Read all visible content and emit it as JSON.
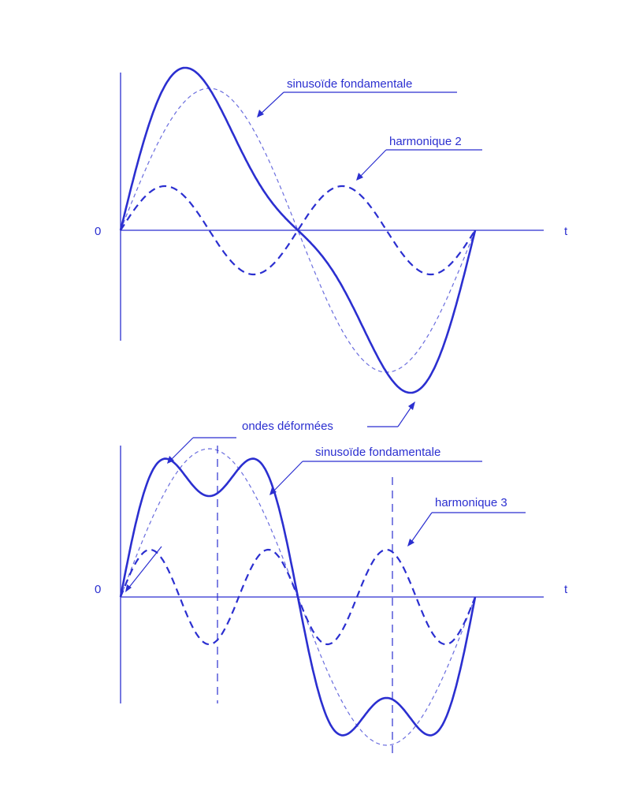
{
  "colors": {
    "ink": "#2b2fd0",
    "background": "#ffffff"
  },
  "top_panel": {
    "origin_label": "0",
    "time_label": "t",
    "label_fundamental": "sinusoïde fondamentale",
    "label_harmonic": "harmonique 2",
    "harmonic_order": 2
  },
  "shared_label": "ondes déformées",
  "bottom_panel": {
    "origin_label": "0",
    "time_label": "t",
    "label_fundamental": "sinusoïde fondamentale",
    "label_harmonic": "harmonique 3",
    "harmonic_order": 3
  }
}
